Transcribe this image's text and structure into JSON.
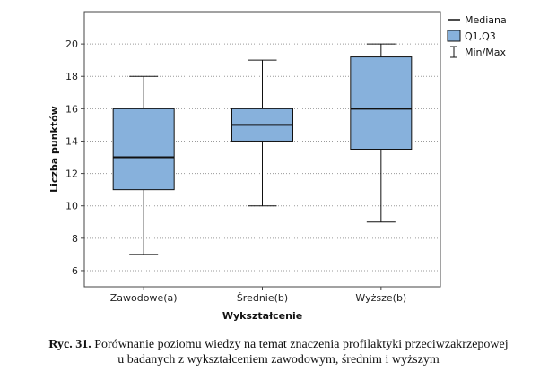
{
  "chart_data": {
    "type": "box",
    "xlabel": "Wykształcenie",
    "ylabel": "Liczba punktów",
    "ylim": [
      5,
      22
    ],
    "yticks": [
      6,
      8,
      10,
      12,
      14,
      16,
      18,
      20
    ],
    "grid": "horizontal-dotted",
    "legend_position": "right",
    "box_color": "#87b1dc",
    "categories": [
      "Zawodowe(a)",
      "Średnie(b)",
      "Wyższe(b)"
    ],
    "boxes": [
      {
        "category": "Zawodowe(a)",
        "min": 7,
        "q1": 11,
        "median": 13,
        "q3": 16,
        "max": 18
      },
      {
        "category": "Średnie(b)",
        "min": 10,
        "q1": 14,
        "median": 15,
        "q3": 16,
        "max": 19
      },
      {
        "category": "Wyższe(b)",
        "min": 9,
        "q1": 13.5,
        "median": 16,
        "q3": 19.2,
        "max": 20
      }
    ],
    "legend": [
      {
        "key": "median",
        "label": "Mediana"
      },
      {
        "key": "quartiles",
        "label": "Q1,Q3"
      },
      {
        "key": "minmax",
        "label": "Min/Max"
      }
    ]
  },
  "caption": {
    "label": "Ryc. 31.",
    "line1": "Porównanie poziomu wiedzy na temat znaczenia profilaktyki przeciwzakrzepowej",
    "line2": "u badanych z wykształceniem zawodowym, średnim i wyższym"
  }
}
